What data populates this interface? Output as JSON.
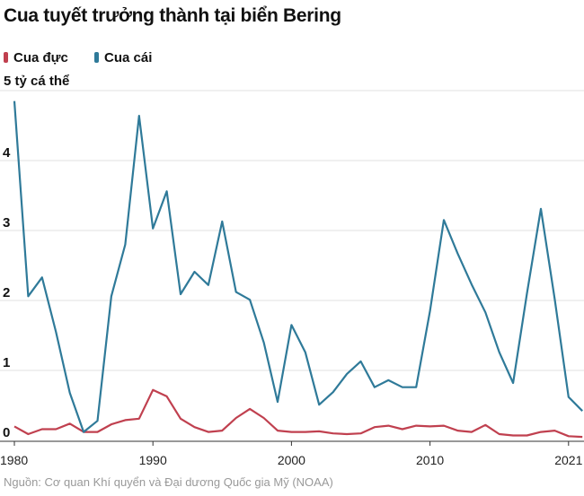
{
  "chart_data": {
    "type": "line",
    "title": "Cua tuyết trưởng thành tại biển Bering",
    "ylabel": "tỷ cá thể",
    "ylim": [
      0,
      5
    ],
    "yticks": [
      0,
      1,
      2,
      3,
      4,
      5
    ],
    "ytick_labels": [
      "0",
      "1",
      "2",
      "3",
      "4",
      "5 tỷ cá thể"
    ],
    "xtick_labels": [
      "1980",
      "1990",
      "2000",
      "2010",
      "2021"
    ],
    "xtick_years": [
      1980,
      1990,
      2000,
      2010,
      2021
    ],
    "grid": true,
    "legend_position": "top-left",
    "source": "Nguồn: Cơ quan Khí quyển và Đại dương Quốc gia Mỹ (NOAA)",
    "x": [
      1980,
      1981,
      1982,
      1983,
      1984,
      1985,
      1986,
      1987,
      1988,
      1989,
      1990,
      1991,
      1992,
      1993,
      1994,
      1995,
      1996,
      1997,
      1998,
      1999,
      2000,
      2001,
      2002,
      2003,
      2004,
      2005,
      2006,
      2007,
      2008,
      2009,
      2010,
      2011,
      2012,
      2013,
      2014,
      2015,
      2016,
      2017,
      2018,
      2019,
      2021,
      2022
    ],
    "series": [
      {
        "name": "Cua đực",
        "color": "#c0404f",
        "values": [
          0.2,
          0.09,
          0.16,
          0.16,
          0.24,
          0.12,
          0.12,
          0.23,
          0.29,
          0.31,
          0.72,
          0.63,
          0.31,
          0.19,
          0.12,
          0.14,
          0.32,
          0.45,
          0.32,
          0.14,
          0.12,
          0.12,
          0.13,
          0.1,
          0.09,
          0.1,
          0.19,
          0.21,
          0.16,
          0.21,
          0.2,
          0.21,
          0.14,
          0.12,
          0.22,
          0.09,
          0.07,
          0.07,
          0.12,
          0.14,
          0.06,
          0.05
        ]
      },
      {
        "name": "Cua cái",
        "color": "#2f7a99",
        "values": [
          4.85,
          2.06,
          2.33,
          1.55,
          0.68,
          0.12,
          0.28,
          2.06,
          2.8,
          4.64,
          3.03,
          3.56,
          2.09,
          2.41,
          2.22,
          3.13,
          2.12,
          2.01,
          1.4,
          0.55,
          1.65,
          1.26,
          0.51,
          0.69,
          0.95,
          1.13,
          0.76,
          0.86,
          0.76,
          0.76,
          1.85,
          3.15,
          2.67,
          2.23,
          1.83,
          1.26,
          0.82,
          2.1,
          3.31,
          2.02,
          0.62,
          0.42
        ]
      }
    ]
  }
}
